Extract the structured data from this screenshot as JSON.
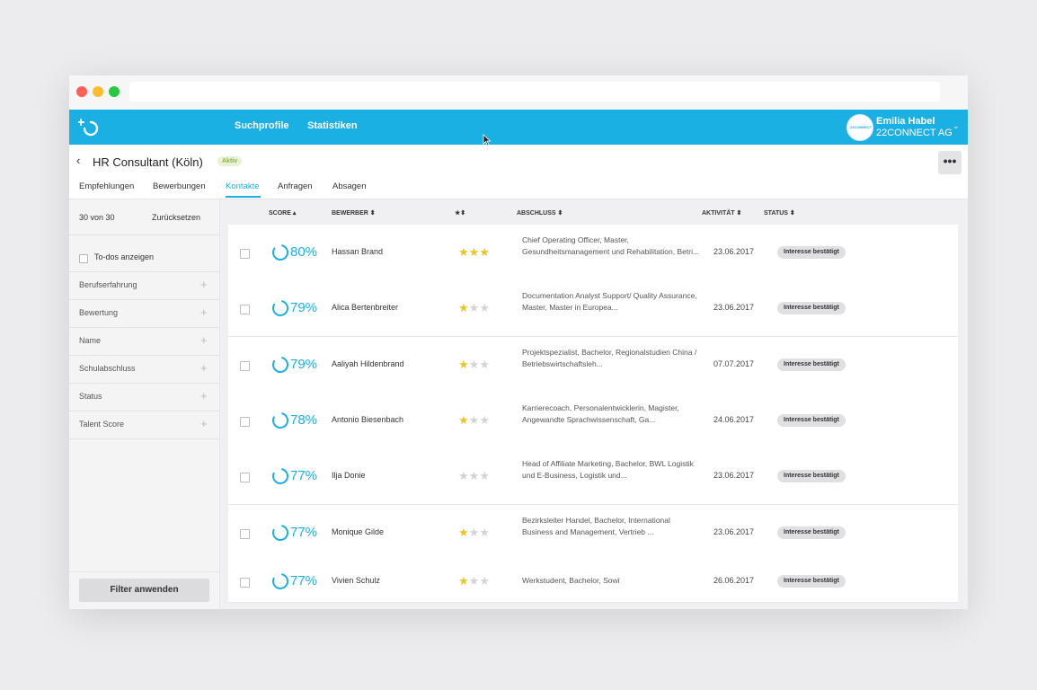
{
  "nav": {
    "items": [
      "Suchprofile",
      "Statistiken"
    ],
    "user_name": "Emilia Habel",
    "user_company": "22CONNECT AG",
    "avatar_text": "22CONNECT"
  },
  "header": {
    "title": "HR Consultant (Köln)",
    "status_badge": "Aktiv",
    "tabs": [
      "Empfehlungen",
      "Bewerbungen",
      "Kontakte",
      "Anfragen",
      "Absagen"
    ],
    "active_tab": "Kontakte",
    "more_label": "•••"
  },
  "sidebar": {
    "count": "30 von 30",
    "reset": "Zurücksetzen",
    "todo_label": "To-dos anzeigen",
    "filters": [
      "Berufserfahrung",
      "Bewertung",
      "Name",
      "Schulabschluss",
      "Status",
      "Talent Score"
    ],
    "apply": "Filter anwenden"
  },
  "table": {
    "headers": {
      "score": "SCORE ▴",
      "bewerber": "BEWERBER ⬍",
      "rating": "★⬍",
      "abschluss": "ABSCHLUSS ⬍",
      "aktivitaet": "AKTIVITÄT ⬍",
      "status": "STATUS ⬍"
    },
    "rows": [
      {
        "score": "80%",
        "score_value": 80,
        "name": "Hassan Brand",
        "stars": 3,
        "degree": "Chief Operating Officer, Master, Gesundheitsmanagement und Rehabilitation, Betri...",
        "date": "23.06.2017",
        "status": "Interesse bestätigt"
      },
      {
        "score": "79%",
        "score_value": 79,
        "name": "Alica Bertenbreiter",
        "stars": 1,
        "degree": "Documentation Analyst Support/ Quality Assurance, Master, Master in Europea...",
        "date": "23.06.2017",
        "status": "Interesse bestätigt"
      },
      {
        "score": "79%",
        "score_value": 79,
        "name": "Aaliyah Hildenbrand",
        "stars": 1,
        "degree": "Projektspezialist, Bachelor, Regionalstudien China / Betriebswirtschaftsleh...",
        "date": "07.07.2017",
        "status": "Interesse bestätigt"
      },
      {
        "score": "78%",
        "score_value": 78,
        "name": "Antonio Biesenbach",
        "stars": 1,
        "degree": "Karrierecoach, Personalentwicklerin, Magister, Angewandte Sprachwissenschaft, Ga...",
        "date": "24.06.2017",
        "status": "Interesse bestätigt"
      },
      {
        "score": "77%",
        "score_value": 77,
        "name": "Ilja Donie",
        "stars": 0,
        "degree": "Head of Affiliate Marketing, Bachelor, BWL Logistik und E-Business, Logistik und...",
        "date": "23.06.2017",
        "status": "Interesse bestätigt"
      },
      {
        "score": "77%",
        "score_value": 77,
        "name": "Monique Gilde",
        "stars": 1,
        "degree": "Bezirksleiter Handel, Bachelor, International Business and Management, Vertrieb ...",
        "date": "23.06.2017",
        "status": "Interesse bestätigt"
      },
      {
        "score": "77%",
        "score_value": 77,
        "name": "Vivien Schulz",
        "stars": 1,
        "degree": "Werkstudent, Bachelor, Sowi",
        "date": "26.06.2017",
        "status": "Interesse bestätigt"
      }
    ]
  },
  "colors": {
    "accent": "#1ab0e3",
    "star_on": "#f0c419",
    "star_off": "#d3d3d6"
  }
}
